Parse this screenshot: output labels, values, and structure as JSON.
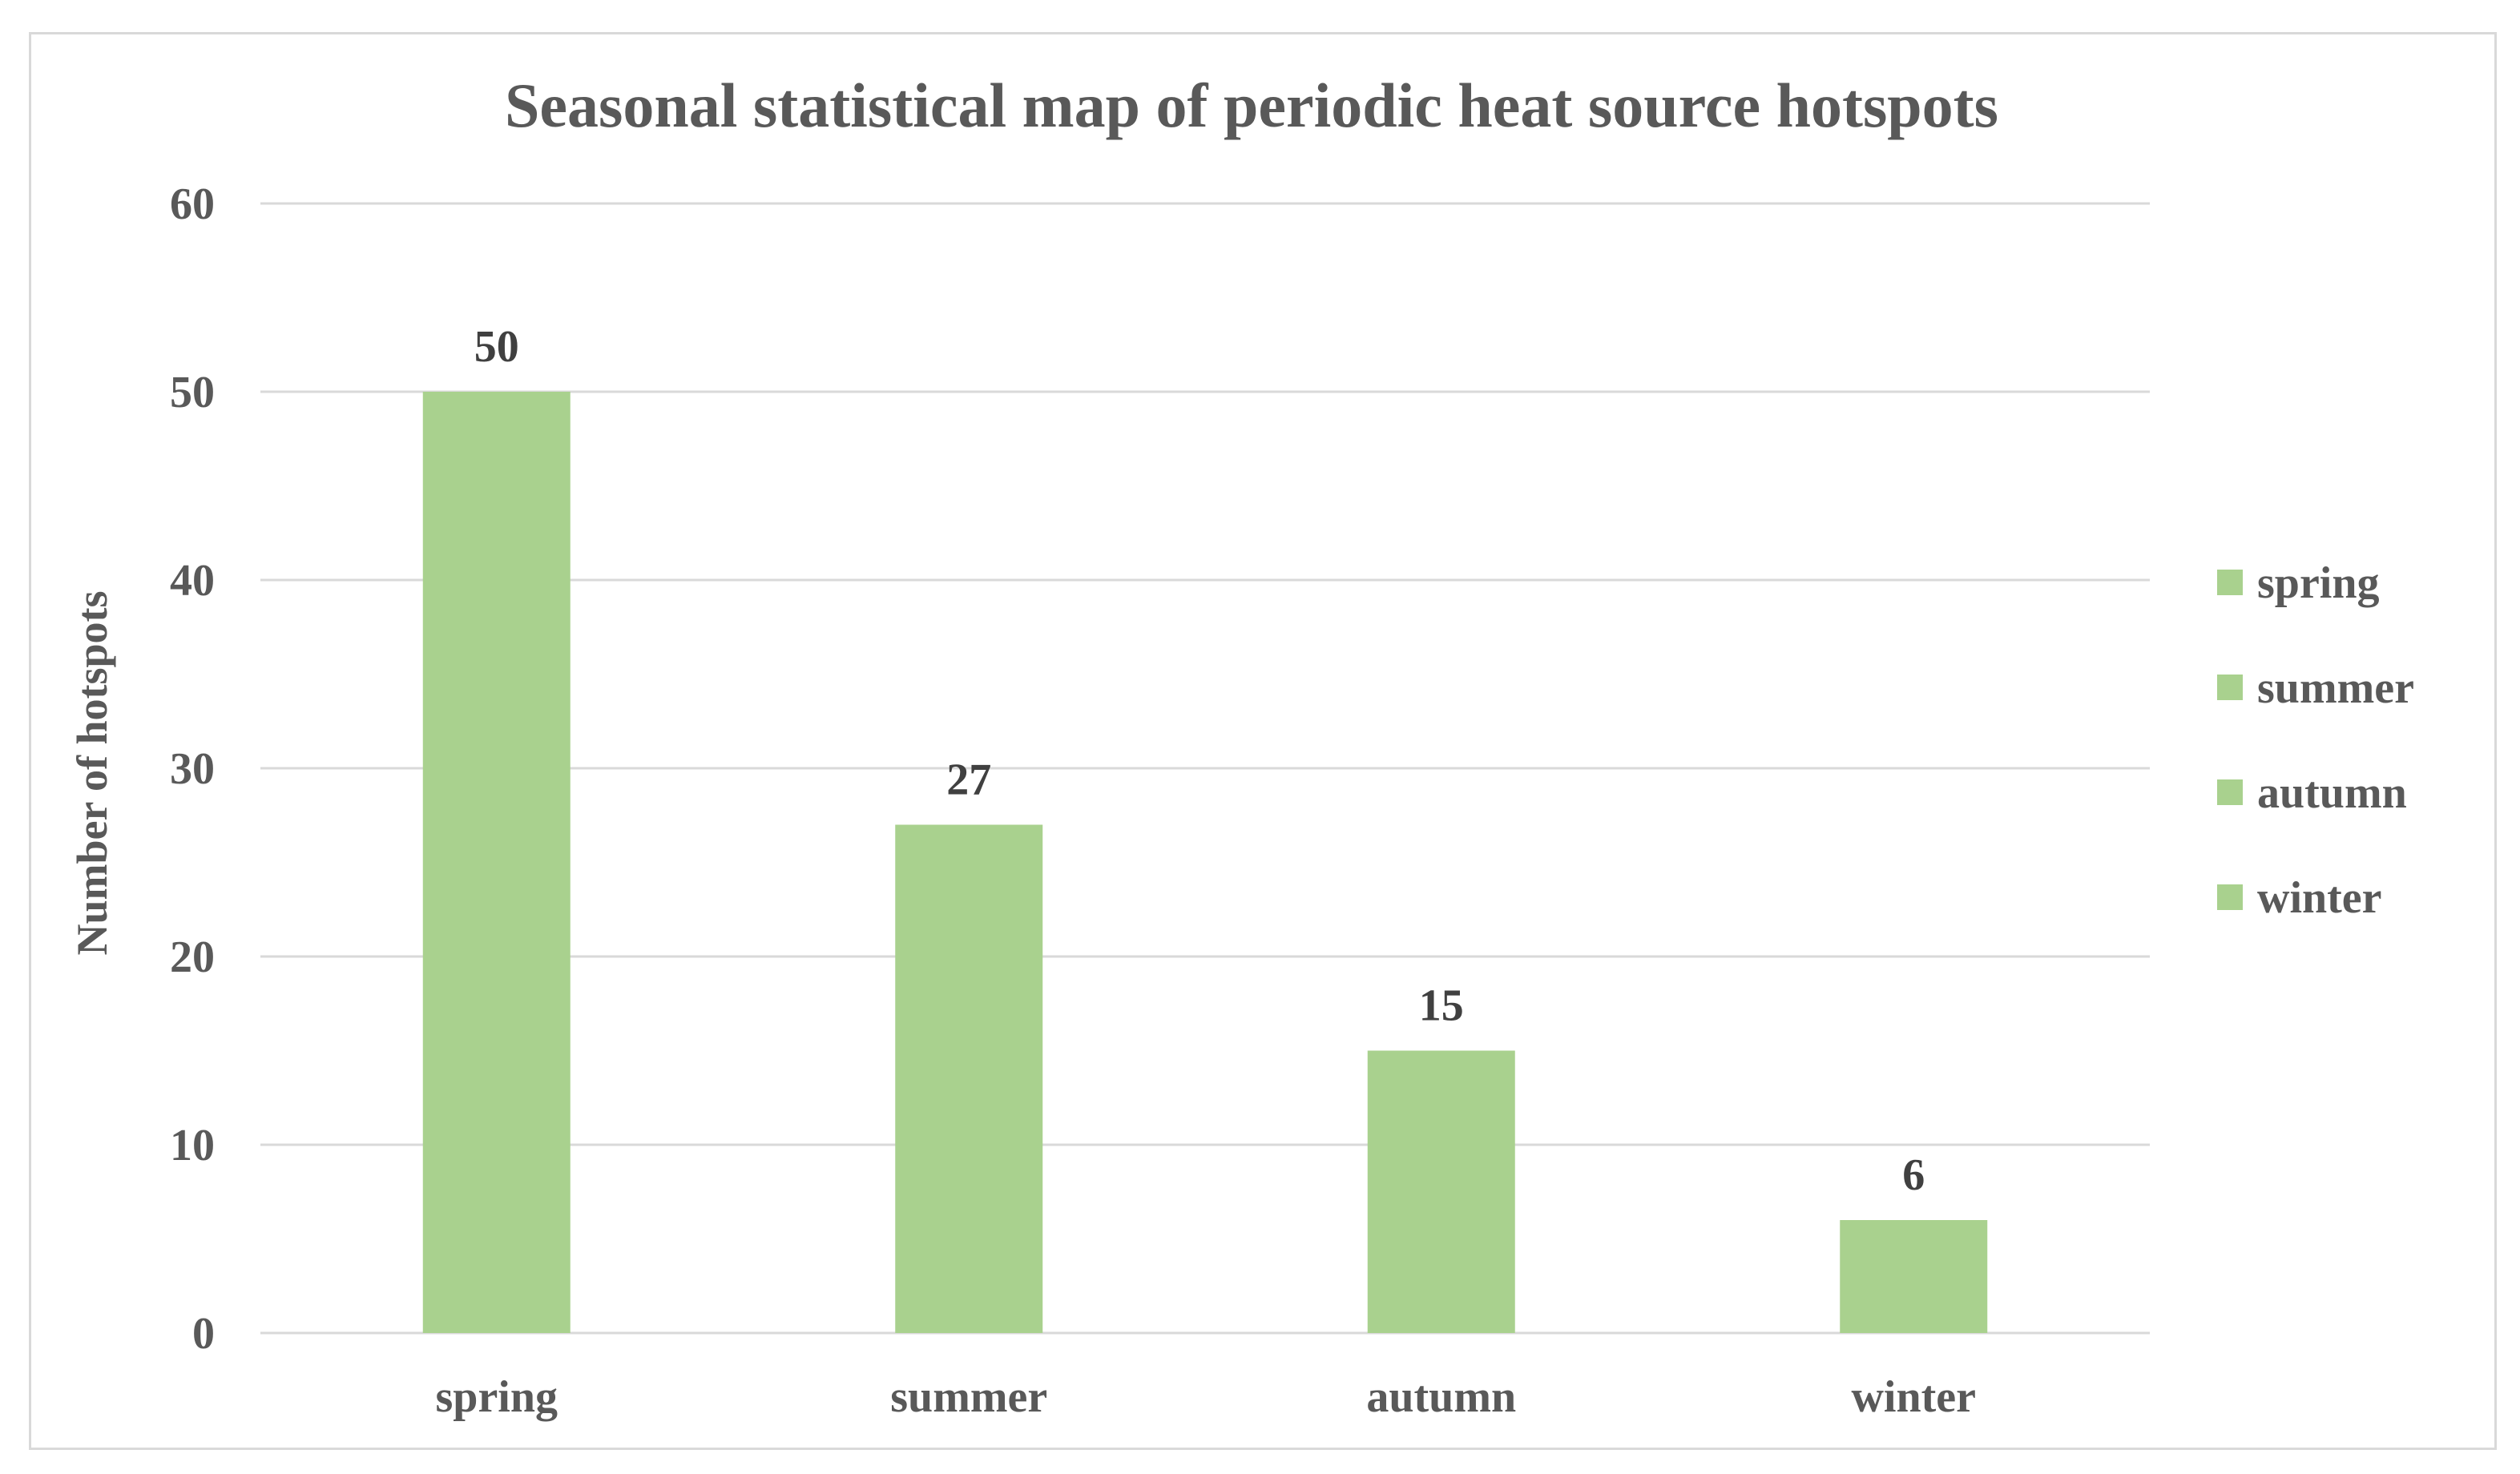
{
  "chart_data": {
    "type": "bar",
    "title": "Seasonal statistical map of periodic heat source hotspots",
    "xlabel": "",
    "ylabel": "Number of hotspots",
    "categories": [
      "spring",
      "summer",
      "autumn",
      "winter"
    ],
    "values": [
      50,
      27,
      15,
      6
    ],
    "data_labels": [
      "50",
      "27",
      "15",
      "6"
    ],
    "ylim": [
      0,
      60
    ],
    "yticks": [
      0,
      10,
      20,
      30,
      40,
      50,
      60
    ],
    "ytick_labels": [
      "0",
      "10",
      "20",
      "30",
      "40",
      "50",
      "60"
    ],
    "grid": true,
    "legend_position": "right",
    "legend_entries": [
      "spring",
      "summer",
      "autumn",
      "winter"
    ],
    "bar_color": "#a9d18e"
  }
}
